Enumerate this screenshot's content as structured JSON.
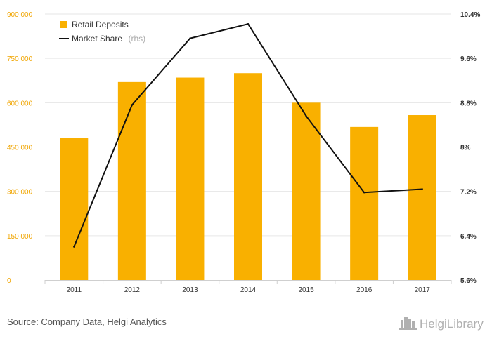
{
  "colors": {
    "bar": "#f9b000",
    "line": "#111111",
    "grid": "#e6e6e6",
    "left_tick": "#f0a500",
    "right_tick": "#333333",
    "source": "#555555",
    "brand": "#b0b0b0"
  },
  "legend": {
    "bars_label": "Retail Deposits",
    "line_label": "Market Share",
    "line_suffix": "(rhs)",
    "position": "top-left"
  },
  "source": "Source: Company Data, Helgi Analytics",
  "brand": {
    "name": "HelgiLibrary",
    "icon": "city-skyline-icon"
  },
  "chart_data": {
    "type": "bar",
    "categories": [
      "2011",
      "2012",
      "2013",
      "2014",
      "2015",
      "2016",
      "2017"
    ],
    "series": [
      {
        "name": "Retail Deposits",
        "type": "bar",
        "axis": "left",
        "values": [
          480000,
          670000,
          685000,
          700000,
          600000,
          518000,
          558000
        ]
      },
      {
        "name": "Market Share",
        "type": "line",
        "axis": "right",
        "values": [
          6.2,
          8.76,
          9.96,
          10.22,
          8.56,
          7.18,
          7.24
        ]
      }
    ],
    "y_left": {
      "ylim": [
        0,
        900000
      ],
      "ticks": [
        0,
        150000,
        300000,
        450000,
        600000,
        750000,
        900000
      ],
      "tick_labels": [
        "0",
        "150 000",
        "300 000",
        "450 000",
        "600 000",
        "750 000",
        "900 000"
      ]
    },
    "y_right": {
      "ylim": [
        5.6,
        10.4
      ],
      "ticks": [
        5.6,
        6.4,
        7.2,
        8,
        8.8,
        9.6,
        10.4
      ],
      "tick_labels": [
        "5.6%",
        "6.4%",
        "7.2%",
        "8%",
        "8.8%",
        "9.6%",
        "10.4%"
      ]
    },
    "grid": true
  }
}
